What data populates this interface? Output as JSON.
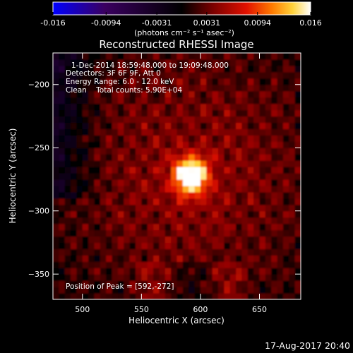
{
  "chart_data": {
    "type": "heatmap",
    "title": "Reconstructed RHESSI Image",
    "xlabel": "Heliocentric X (arcsec)",
    "ylabel": "Heliocentric Y (arcsec)",
    "xlim": [
      475,
      685
    ],
    "ylim": [
      -370,
      -175
    ],
    "x_ticks": [
      500,
      550,
      600,
      650
    ],
    "y_ticks": [
      -200,
      -250,
      -300,
      -350
    ],
    "colorbar": {
      "range": [
        -0.016,
        0.016
      ],
      "tick_values": [
        -0.016,
        -0.0094,
        -0.0031,
        0.0031,
        0.0094,
        0.016
      ],
      "tick_labels": [
        "-0.016",
        "-0.0094",
        "-0.0031",
        "0.0031",
        "0.0094",
        "0.016"
      ],
      "unit_label": "(photons cm⁻² s⁻¹ asec⁻²)",
      "colors": [
        "#0000ff",
        "#3a0060",
        "#000000",
        "#7a0000",
        "#e01000",
        "#ff7a00",
        "#ffd23a",
        "#ffffff"
      ]
    },
    "info_lines": [
      "1-Dec-2014 18:59:48.000 to 19:09:48.000",
      "Detectors: 3F 6F 9F, Att 0",
      "Energy Range: 6.0 - 12.0 keV",
      "Clean    Total counts: 5.90E+04"
    ],
    "peak_label": "Position of Peak = [592,-272]",
    "peak": [
      592,
      -272
    ],
    "peak_value": 0.016,
    "grid": false
  },
  "timestamp": "17-Aug-2017 20:40"
}
